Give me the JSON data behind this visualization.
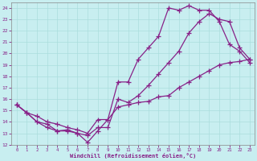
{
  "xlabel": "Windchill (Refroidissement éolien,°C)",
  "xlim": [
    -0.5,
    23.5
  ],
  "ylim": [
    12,
    24.5
  ],
  "xticks": [
    0,
    1,
    2,
    3,
    4,
    5,
    6,
    7,
    8,
    9,
    10,
    11,
    12,
    13,
    14,
    15,
    16,
    17,
    18,
    19,
    20,
    21,
    22,
    23
  ],
  "yticks": [
    12,
    13,
    14,
    15,
    16,
    17,
    18,
    19,
    20,
    21,
    22,
    23,
    24
  ],
  "bg_color": "#c8eef0",
  "grid_color": "#aadddd",
  "line_color": "#882288",
  "line1_x": [
    0,
    1,
    2,
    3,
    4,
    5,
    6,
    7,
    8,
    9,
    10,
    11,
    12,
    13,
    14,
    15,
    16,
    17,
    18,
    19,
    20,
    21,
    22,
    23
  ],
  "line1_y": [
    15.5,
    14.8,
    14.0,
    13.8,
    13.2,
    13.2,
    13.0,
    12.2,
    13.2,
    14.2,
    17.5,
    17.5,
    19.5,
    20.5,
    21.5,
    24.0,
    23.8,
    24.2,
    23.8,
    23.8,
    22.8,
    20.8,
    20.2,
    19.2
  ],
  "line2_x": [
    0,
    1,
    2,
    3,
    4,
    5,
    6,
    7,
    8,
    9,
    10,
    11,
    12,
    13,
    14,
    15,
    16,
    17,
    18,
    19,
    20,
    21,
    22,
    23
  ],
  "line2_y": [
    15.5,
    14.8,
    14.0,
    13.5,
    13.2,
    13.3,
    13.0,
    12.8,
    13.5,
    13.5,
    16.0,
    15.7,
    16.3,
    17.2,
    18.2,
    19.2,
    20.2,
    21.8,
    22.8,
    23.5,
    23.0,
    22.8,
    20.5,
    19.5
  ],
  "line3_x": [
    0,
    1,
    2,
    3,
    4,
    5,
    6,
    7,
    8,
    9,
    10,
    11,
    12,
    13,
    14,
    15,
    16,
    17,
    18,
    19,
    20,
    21,
    22,
    23
  ],
  "line3_y": [
    15.5,
    14.8,
    14.5,
    14.0,
    13.8,
    13.5,
    13.3,
    13.0,
    14.2,
    14.2,
    15.3,
    15.5,
    15.7,
    15.8,
    16.2,
    16.3,
    17.0,
    17.5,
    18.0,
    18.5,
    19.0,
    19.2,
    19.3,
    19.5
  ]
}
